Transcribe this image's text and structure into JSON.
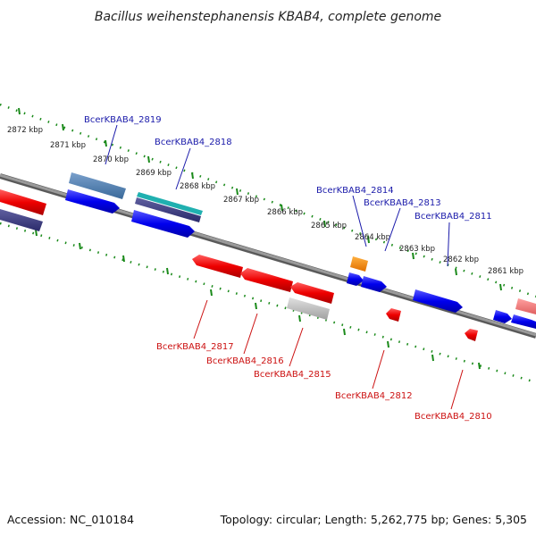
{
  "title": "Bacillus weihenstephanensis KBAB4, complete genome",
  "footer": {
    "accession": "Accession: NC_010184",
    "summary": "Topology: circular; Length: 5,262,775 bp; Genes: 5,305"
  },
  "colors": {
    "backbone": "#8a8a8a",
    "ticks": "#1a8a1a",
    "forward_label": "#1a1aaa",
    "reverse_label": "#cc1111"
  },
  "scale_ticks": [
    "2872 kbp",
    "2871 kbp",
    "2870 kbp",
    "2869 kbp",
    "2868 kbp",
    "2867 kbp",
    "2866 kbp",
    "2865 kbp",
    "2864 kbp",
    "2863 kbp",
    "2862 kbp",
    "2861 kbp"
  ],
  "forward_labels": [
    "BcerKBAB4_2819",
    "BcerKBAB4_2818",
    "BcerKBAB4_2814",
    "BcerKBAB4_2813",
    "BcerKBAB4_2811"
  ],
  "reverse_labels": [
    "BcerKBAB4_2817",
    "BcerKBAB4_2816",
    "BcerKBAB4_2815",
    "BcerKBAB4_2812",
    "BcerKBAB4_2810"
  ]
}
